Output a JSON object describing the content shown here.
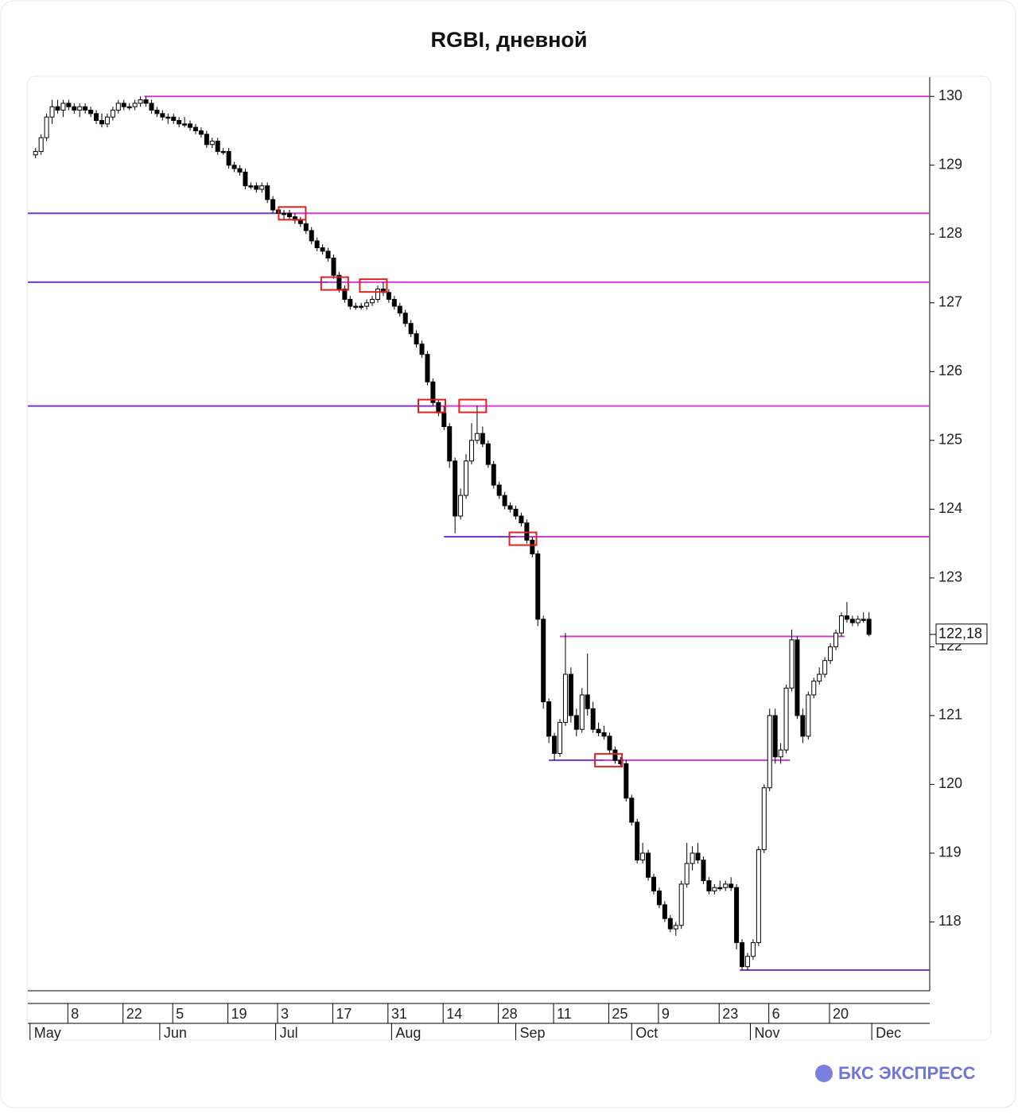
{
  "chart_data": {
    "type": "candlestick",
    "title": "RGBI, дневной",
    "ylim": [
      117.0,
      130.28
    ],
    "yticks": [
      118,
      119,
      120,
      121,
      122,
      123,
      124,
      125,
      126,
      127,
      128,
      129,
      130
    ],
    "xlim": [
      -1.4,
      162
    ],
    "xticks": [
      {
        "value": 7,
        "label": "8"
      },
      {
        "value": 17,
        "label": "22"
      },
      {
        "value": 26,
        "label": "5"
      },
      {
        "value": 36,
        "label": "19"
      },
      {
        "value": 45,
        "label": "3"
      },
      {
        "value": 55,
        "label": "17"
      },
      {
        "value": 65,
        "label": "31"
      },
      {
        "value": 75,
        "label": "14"
      },
      {
        "value": 85,
        "label": "28"
      },
      {
        "value": 95,
        "label": "11"
      },
      {
        "value": 105,
        "label": "25"
      },
      {
        "value": 114,
        "label": "9"
      },
      {
        "value": 125,
        "label": "23"
      },
      {
        "value": 134,
        "label": "6"
      },
      {
        "value": 145,
        "label": "20"
      }
    ],
    "month_ticks": [
      {
        "value": -1,
        "label": "May"
      },
      {
        "value": 22.5,
        "label": "Jun"
      },
      {
        "value": 43.5,
        "label": "Jul"
      },
      {
        "value": 64.5,
        "label": "Aug"
      },
      {
        "value": 87,
        "label": "Sep"
      },
      {
        "value": 108,
        "label": "Oct"
      },
      {
        "value": 129.5,
        "label": "Nov"
      },
      {
        "value": 151.5,
        "label": "Dec"
      }
    ],
    "last_price": {
      "value": 122.18,
      "label": "122,18"
    },
    "levels": [
      {
        "value": 130.0,
        "from": 19.7,
        "to": 162,
        "color": "#d43ad4"
      },
      {
        "value": 128.3,
        "from": -1.4,
        "to": 45,
        "color": "#7a35c8"
      },
      {
        "value": 128.3,
        "from": 45,
        "to": 162,
        "color": "#d43ad4"
      },
      {
        "value": 127.3,
        "from": -1.4,
        "to": 53,
        "color": "#7a35c8"
      },
      {
        "value": 127.3,
        "from": 53,
        "to": 162,
        "color": "#d43ad4"
      },
      {
        "value": 125.5,
        "from": -1.4,
        "to": 72,
        "color": "#7a35c8"
      },
      {
        "value": 125.5,
        "from": 72,
        "to": 162,
        "color": "#d43ad4"
      },
      {
        "value": 123.6,
        "from": 74,
        "to": 87,
        "color": "#7a35c8"
      },
      {
        "value": 123.6,
        "from": 87,
        "to": 162,
        "color": "#d43ad4"
      },
      {
        "value": 122.15,
        "from": 95,
        "to": 146.6,
        "color": "#d43ad4"
      },
      {
        "value": 120.35,
        "from": 93,
        "to": 103,
        "color": "#7a35c8"
      },
      {
        "value": 120.35,
        "from": 103,
        "to": 136.7,
        "color": "#d43ad4"
      },
      {
        "value": 117.3,
        "from": 127.6,
        "to": 162,
        "color": "#7a35c8"
      }
    ],
    "highlights": [
      {
        "x": 46.5,
        "y": 128.3
      },
      {
        "x": 54.2,
        "y": 127.28
      },
      {
        "x": 61.2,
        "y": 127.25
      },
      {
        "x": 71.8,
        "y": 125.5
      },
      {
        "x": 79.2,
        "y": 125.5
      },
      {
        "x": 88.3,
        "y": 123.57
      },
      {
        "x": 103.8,
        "y": 120.35
      }
    ],
    "candles": [
      [
        129.15,
        129.25,
        129.1,
        129.2
      ],
      [
        129.2,
        129.45,
        129.15,
        129.4
      ],
      [
        129.4,
        129.75,
        129.35,
        129.7
      ],
      [
        129.7,
        129.95,
        129.6,
        129.85
      ],
      [
        129.85,
        129.95,
        129.75,
        129.8
      ],
      [
        129.8,
        129.95,
        129.7,
        129.9
      ],
      [
        129.9,
        129.95,
        129.8,
        129.85
      ],
      [
        129.85,
        129.9,
        129.75,
        129.8
      ],
      [
        129.8,
        129.9,
        129.7,
        129.85
      ],
      [
        129.85,
        129.9,
        129.75,
        129.8
      ],
      [
        129.8,
        129.85,
        129.7,
        129.75
      ],
      [
        129.75,
        129.8,
        129.6,
        129.65
      ],
      [
        129.65,
        129.75,
        129.55,
        129.6
      ],
      [
        129.6,
        129.75,
        129.55,
        129.7
      ],
      [
        129.7,
        129.85,
        129.65,
        129.8
      ],
      [
        129.8,
        129.95,
        129.75,
        129.9
      ],
      [
        129.9,
        129.95,
        129.8,
        129.85
      ],
      [
        129.85,
        129.9,
        129.8,
        129.85
      ],
      [
        129.85,
        129.95,
        129.8,
        129.9
      ],
      [
        129.9,
        130.0,
        129.85,
        129.95
      ],
      [
        129.95,
        130.0,
        129.85,
        129.9
      ],
      [
        129.9,
        129.95,
        129.75,
        129.8
      ],
      [
        129.8,
        129.85,
        129.7,
        129.75
      ],
      [
        129.75,
        129.8,
        129.65,
        129.7
      ],
      [
        129.7,
        129.75,
        129.6,
        129.7
      ],
      [
        129.7,
        129.75,
        129.6,
        129.65
      ],
      [
        129.65,
        129.7,
        129.55,
        129.6
      ],
      [
        129.6,
        129.7,
        129.55,
        129.6
      ],
      [
        129.6,
        129.65,
        129.5,
        129.55
      ],
      [
        129.55,
        129.6,
        129.45,
        129.5
      ],
      [
        129.5,
        129.55,
        129.4,
        129.45
      ],
      [
        129.45,
        129.5,
        129.25,
        129.3
      ],
      [
        129.3,
        129.4,
        129.25,
        129.35
      ],
      [
        129.35,
        129.4,
        129.15,
        129.2
      ],
      [
        129.2,
        129.25,
        129.15,
        129.2
      ],
      [
        129.2,
        129.25,
        128.95,
        129.0
      ],
      [
        129.0,
        129.05,
        128.9,
        128.95
      ],
      [
        128.95,
        129.0,
        128.85,
        128.9
      ],
      [
        128.9,
        128.95,
        128.65,
        128.7
      ],
      [
        128.7,
        128.75,
        128.65,
        128.7
      ],
      [
        128.7,
        128.75,
        128.6,
        128.65
      ],
      [
        128.65,
        128.75,
        128.6,
        128.7
      ],
      [
        128.7,
        128.75,
        128.45,
        128.5
      ],
      [
        128.5,
        128.55,
        128.3,
        128.35
      ],
      [
        128.35,
        128.4,
        128.25,
        128.3
      ],
      [
        128.3,
        128.35,
        128.2,
        128.3
      ],
      [
        128.3,
        128.35,
        128.2,
        128.25
      ],
      [
        128.25,
        128.3,
        128.15,
        128.2
      ],
      [
        128.2,
        128.25,
        128.1,
        128.15
      ],
      [
        128.15,
        128.2,
        128.0,
        128.05
      ],
      [
        128.05,
        128.1,
        127.85,
        127.9
      ],
      [
        127.9,
        127.95,
        127.75,
        127.8
      ],
      [
        127.8,
        127.85,
        127.7,
        127.75
      ],
      [
        127.75,
        127.8,
        127.6,
        127.65
      ],
      [
        127.65,
        127.7,
        127.35,
        127.4
      ],
      [
        127.4,
        127.45,
        127.15,
        127.2
      ],
      [
        127.2,
        127.25,
        127.0,
        127.05
      ],
      [
        127.05,
        127.1,
        126.9,
        126.95
      ],
      [
        126.95,
        127.0,
        126.9,
        126.95
      ],
      [
        126.95,
        127.0,
        126.9,
        126.95
      ],
      [
        126.95,
        127.05,
        126.9,
        127.0
      ],
      [
        127.0,
        127.1,
        126.95,
        127.05
      ],
      [
        127.05,
        127.25,
        127.0,
        127.2
      ],
      [
        127.2,
        127.3,
        127.1,
        127.15
      ],
      [
        127.15,
        127.2,
        127.0,
        127.05
      ],
      [
        127.05,
        127.1,
        126.9,
        126.95
      ],
      [
        126.95,
        127.0,
        126.8,
        126.85
      ],
      [
        126.85,
        126.9,
        126.65,
        126.7
      ],
      [
        126.7,
        126.75,
        126.5,
        126.55
      ],
      [
        126.55,
        126.6,
        126.35,
        126.4
      ],
      [
        126.4,
        126.45,
        126.2,
        126.25
      ],
      [
        126.25,
        126.3,
        125.8,
        125.85
      ],
      [
        125.85,
        125.9,
        125.5,
        125.55
      ],
      [
        125.55,
        125.6,
        125.35,
        125.4
      ],
      [
        125.4,
        125.5,
        125.15,
        125.2
      ],
      [
        125.2,
        125.25,
        124.6,
        124.7
      ],
      [
        124.7,
        124.75,
        123.65,
        123.9
      ],
      [
        123.9,
        124.3,
        123.85,
        124.2
      ],
      [
        124.2,
        124.8,
        124.15,
        124.7
      ],
      [
        124.7,
        125.25,
        124.65,
        125.0
      ],
      [
        125.0,
        125.5,
        124.95,
        125.1
      ],
      [
        125.1,
        125.2,
        124.9,
        124.95
      ],
      [
        124.95,
        125.0,
        124.6,
        124.65
      ],
      [
        124.65,
        124.7,
        124.3,
        124.35
      ],
      [
        124.35,
        124.4,
        124.15,
        124.2
      ],
      [
        124.2,
        124.25,
        124.0,
        124.05
      ],
      [
        124.05,
        124.1,
        123.95,
        124.0
      ],
      [
        124.0,
        124.05,
        123.85,
        123.9
      ],
      [
        123.9,
        123.95,
        123.75,
        123.8
      ],
      [
        123.8,
        123.85,
        123.5,
        123.55
      ],
      [
        123.55,
        123.6,
        123.3,
        123.35
      ],
      [
        123.35,
        123.4,
        122.3,
        122.4
      ],
      [
        122.4,
        122.45,
        121.1,
        121.2
      ],
      [
        121.2,
        121.25,
        120.6,
        120.7
      ],
      [
        120.7,
        120.75,
        120.35,
        120.45
      ],
      [
        120.45,
        120.95,
        120.4,
        120.9
      ],
      [
        120.9,
        122.2,
        120.85,
        121.6
      ],
      [
        121.6,
        121.7,
        120.9,
        121.0
      ],
      [
        121.0,
        121.1,
        120.7,
        120.8
      ],
      [
        120.8,
        121.4,
        120.75,
        121.3
      ],
      [
        121.3,
        121.9,
        121.0,
        121.1
      ],
      [
        121.1,
        121.2,
        120.75,
        120.8
      ],
      [
        120.8,
        120.9,
        120.7,
        120.75
      ],
      [
        120.75,
        120.85,
        120.65,
        120.7
      ],
      [
        120.7,
        120.75,
        120.45,
        120.5
      ],
      [
        120.5,
        120.55,
        120.3,
        120.35
      ],
      [
        120.35,
        120.4,
        120.25,
        120.3
      ],
      [
        120.3,
        120.35,
        119.75,
        119.8
      ],
      [
        119.8,
        119.85,
        119.4,
        119.45
      ],
      [
        119.45,
        119.5,
        118.85,
        118.9
      ],
      [
        118.9,
        119.15,
        118.85,
        119.0
      ],
      [
        119.0,
        119.05,
        118.6,
        118.65
      ],
      [
        118.65,
        118.7,
        118.4,
        118.45
      ],
      [
        118.45,
        118.5,
        118.2,
        118.25
      ],
      [
        118.25,
        118.3,
        118.0,
        118.05
      ],
      [
        118.05,
        118.1,
        117.85,
        117.9
      ],
      [
        117.9,
        118.0,
        117.8,
        117.95
      ],
      [
        117.95,
        118.6,
        117.9,
        118.55
      ],
      [
        118.55,
        119.15,
        118.5,
        118.85
      ],
      [
        118.85,
        119.1,
        118.75,
        119.0
      ],
      [
        119.0,
        119.15,
        118.85,
        118.9
      ],
      [
        118.9,
        118.95,
        118.55,
        118.6
      ],
      [
        118.6,
        118.65,
        118.4,
        118.45
      ],
      [
        118.45,
        118.55,
        118.4,
        118.5
      ],
      [
        118.5,
        118.6,
        118.45,
        118.5
      ],
      [
        118.5,
        118.6,
        118.45,
        118.55
      ],
      [
        118.55,
        118.65,
        118.45,
        118.5
      ],
      [
        118.5,
        118.55,
        117.6,
        117.7
      ],
      [
        117.7,
        117.75,
        117.3,
        117.35
      ],
      [
        117.35,
        117.55,
        117.3,
        117.5
      ],
      [
        117.5,
        117.75,
        117.45,
        117.7
      ],
      [
        117.7,
        119.1,
        117.65,
        119.05
      ],
      [
        119.05,
        120.0,
        119.0,
        119.95
      ],
      [
        119.95,
        121.1,
        119.9,
        121.0
      ],
      [
        121.0,
        121.1,
        120.3,
        120.4
      ],
      [
        120.4,
        120.6,
        120.3,
        120.5
      ],
      [
        120.5,
        121.45,
        120.45,
        121.4
      ],
      [
        121.4,
        122.25,
        121.35,
        122.1
      ],
      [
        122.1,
        122.15,
        120.95,
        121.0
      ],
      [
        121.0,
        121.1,
        120.6,
        120.7
      ],
      [
        120.7,
        121.35,
        120.65,
        121.3
      ],
      [
        121.3,
        121.55,
        121.25,
        121.5
      ],
      [
        121.5,
        121.7,
        121.45,
        121.6
      ],
      [
        121.6,
        121.85,
        121.55,
        121.8
      ],
      [
        121.8,
        122.05,
        121.75,
        122.0
      ],
      [
        122.0,
        122.25,
        121.95,
        122.2
      ],
      [
        122.2,
        122.5,
        122.15,
        122.45
      ],
      [
        122.45,
        122.65,
        122.35,
        122.4
      ],
      [
        122.4,
        122.45,
        122.3,
        122.35
      ],
      [
        122.35,
        122.45,
        122.3,
        122.4
      ],
      [
        122.4,
        122.5,
        122.35,
        122.4
      ],
      [
        122.4,
        122.5,
        122.15,
        122.18
      ]
    ]
  },
  "brand": {
    "name": "БКС ЭКСПРЕСС"
  }
}
